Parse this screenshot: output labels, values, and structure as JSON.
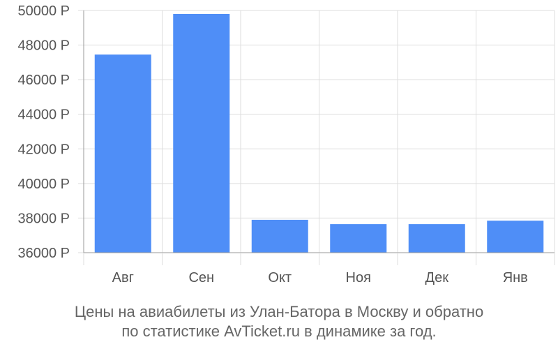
{
  "chart_data": {
    "type": "bar",
    "categories": [
      "Авг",
      "Сен",
      "Окт",
      "Ноя",
      "Дек",
      "Янв"
    ],
    "values": [
      47450,
      49800,
      37900,
      37650,
      37650,
      37850
    ],
    "ylim": [
      36000,
      50000
    ],
    "yticks": [
      36000,
      38000,
      40000,
      42000,
      44000,
      46000,
      48000,
      50000
    ],
    "ytick_labels": [
      "36000 Р",
      "38000 Р",
      "40000 Р",
      "42000 Р",
      "44000 Р",
      "46000 Р",
      "48000 Р",
      "50000 Р"
    ],
    "grid": true,
    "bar_color": "#4f8ef7",
    "grid_color": "#dddddd",
    "axis_color": "#999999"
  },
  "caption": {
    "line1": "Цены на авиабилеты из Улан-Батора в Москву и обратно",
    "line2": "по статистике AvTicket.ru в динамике за год."
  }
}
